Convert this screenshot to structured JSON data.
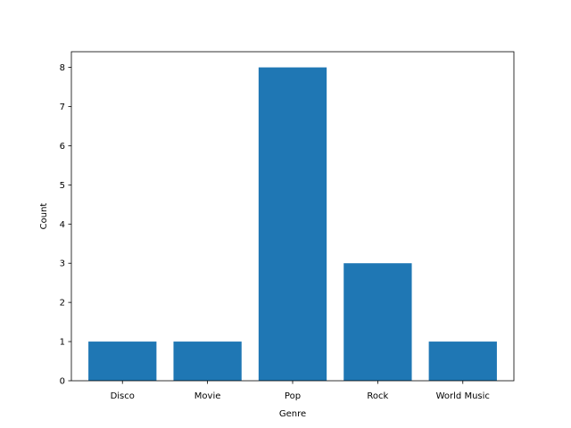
{
  "chart_data": {
    "type": "bar",
    "title": "",
    "xlabel": "Genre",
    "ylabel": "Count",
    "categories": [
      "Disco",
      "Movie",
      "Pop",
      "Rock",
      "World Music"
    ],
    "values": [
      1,
      1,
      8,
      3,
      1
    ],
    "ylim": [
      0,
      8.4
    ],
    "yticks": [
      "0",
      "1",
      "2",
      "3",
      "4",
      "5",
      "6",
      "7",
      "8"
    ],
    "grid": false,
    "legend": "none",
    "bar_color": "#1f77b4"
  }
}
